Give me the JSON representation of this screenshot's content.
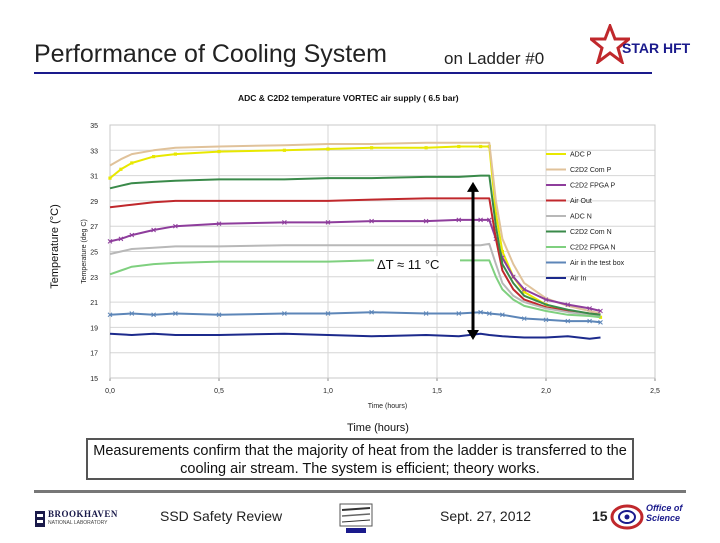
{
  "slide": {
    "title": "Performance of Cooling System",
    "subtitle": "on Ladder #0",
    "logo_text": "STAR HFT",
    "outer_ylabel": "Temperature (°C)",
    "outer_xlabel": "Time (hours)",
    "caption": "Measurements confirm that the majority of heat from the ladder is transferred to the cooling air stream.  The system is efficient; theory works.",
    "footer": {
      "left_logo_name": "BROOKHAVEN",
      "left_logo_sub": "NATIONAL LABORATORY",
      "talk": "SSD Safety Review",
      "date": "Sept. 27, 2012",
      "page": "15",
      "right_logo_text": "Office of Science"
    }
  },
  "chart_data": {
    "type": "line",
    "title": "ADC & C2D2 temperature   VORTEC air supply  ( 6.5 bar)",
    "xlabel": "Time (hours)",
    "ylabel": "Temperature (deg C)",
    "xlim": [
      0,
      2.5
    ],
    "ylim": [
      15,
      35
    ],
    "xticks": [
      "0,0",
      "0,5",
      "1,0",
      "1,5",
      "2,0",
      "2,5"
    ],
    "yticks": [
      "15",
      "17",
      "19",
      "21",
      "23",
      "25",
      "27",
      "29",
      "31",
      "33",
      "35"
    ],
    "grid": true,
    "legend_position": "right",
    "annotation": "ΔT ≈ 11 °C",
    "annotation_arrow": {
      "x": 1.5,
      "y_from": 18.0,
      "y_to": 30.5
    },
    "series": [
      {
        "name": "ADC P",
        "color": "#e8e800",
        "marker": "square",
        "x": [
          0.0,
          0.05,
          0.1,
          0.2,
          0.3,
          0.5,
          0.8,
          1.0,
          1.2,
          1.45,
          1.6,
          1.7,
          1.74,
          1.77,
          1.8,
          1.85,
          1.9,
          2.0,
          2.1,
          2.2,
          2.25
        ],
        "y": [
          30.8,
          31.5,
          32.0,
          32.5,
          32.7,
          32.9,
          33.0,
          33.1,
          33.2,
          33.2,
          33.3,
          33.3,
          33.3,
          28.0,
          25.0,
          23.0,
          21.8,
          20.8,
          20.3,
          20.0,
          19.8
        ]
      },
      {
        "name": "C2D2 Com P",
        "color": "#e0c29a",
        "x": [
          0.0,
          0.05,
          0.1,
          0.2,
          0.3,
          0.5,
          0.8,
          1.0,
          1.2,
          1.45,
          1.6,
          1.7,
          1.74,
          1.77,
          1.8,
          1.85,
          1.9,
          2.0,
          2.1,
          2.2,
          2.25
        ],
        "y": [
          31.8,
          32.3,
          32.7,
          33.0,
          33.2,
          33.3,
          33.4,
          33.5,
          33.5,
          33.6,
          33.6,
          33.6,
          33.6,
          29.0,
          26.0,
          24.0,
          22.5,
          21.3,
          20.7,
          20.3,
          20.1
        ]
      },
      {
        "name": "C2D2 FPGA P",
        "color": "#8e3d9c",
        "marker": "x",
        "x": [
          0.0,
          0.05,
          0.1,
          0.2,
          0.3,
          0.5,
          0.8,
          1.0,
          1.2,
          1.45,
          1.6,
          1.7,
          1.74,
          1.77,
          1.8,
          1.85,
          1.9,
          2.0,
          2.1,
          2.2,
          2.25
        ],
        "y": [
          25.8,
          26.0,
          26.3,
          26.7,
          27.0,
          27.2,
          27.3,
          27.3,
          27.4,
          27.4,
          27.5,
          27.5,
          27.5,
          26.0,
          24.5,
          23.0,
          22.0,
          21.2,
          20.8,
          20.5,
          20.3
        ]
      },
      {
        "name": "Air Out",
        "color": "#c0282c",
        "x": [
          0.0,
          0.05,
          0.1,
          0.2,
          0.3,
          0.5,
          0.8,
          1.0,
          1.2,
          1.45,
          1.6,
          1.7,
          1.74,
          1.77,
          1.8,
          1.85,
          1.9,
          2.0,
          2.1,
          2.2,
          2.25
        ],
        "y": [
          28.5,
          28.6,
          28.7,
          28.9,
          29.0,
          29.0,
          29.0,
          29.0,
          29.1,
          29.2,
          29.2,
          29.2,
          29.2,
          26.0,
          23.5,
          22.0,
          21.2,
          20.6,
          20.3,
          20.1,
          20.0
        ]
      },
      {
        "name": "ADC N",
        "color": "#b8b8b8",
        "x": [
          0.0,
          0.05,
          0.1,
          0.2,
          0.3,
          0.5,
          0.8,
          1.0,
          1.2,
          1.45,
          1.6,
          1.7,
          1.74,
          1.77,
          1.8,
          1.85,
          1.9,
          2.0,
          2.1,
          2.2,
          2.25
        ],
        "y": [
          24.8,
          25.0,
          25.2,
          25.3,
          25.4,
          25.4,
          25.5,
          25.5,
          25.5,
          25.5,
          25.5,
          25.5,
          25.6,
          24.0,
          22.5,
          21.5,
          21.0,
          20.5,
          20.2,
          20.0,
          19.9
        ]
      },
      {
        "name": "C2D2 Com N",
        "color": "#3a8a4a",
        "x": [
          0.0,
          0.05,
          0.1,
          0.2,
          0.3,
          0.5,
          0.8,
          1.0,
          1.2,
          1.45,
          1.6,
          1.7,
          1.74,
          1.77,
          1.8,
          1.85,
          1.9,
          2.0,
          2.1,
          2.2,
          2.25
        ],
        "y": [
          30.0,
          30.2,
          30.4,
          30.5,
          30.6,
          30.7,
          30.7,
          30.8,
          30.8,
          30.9,
          30.9,
          31.0,
          31.0,
          27.0,
          24.0,
          22.5,
          21.5,
          20.8,
          20.4,
          20.1,
          20.0
        ]
      },
      {
        "name": "C2D2 FPGA N",
        "color": "#7fd07f",
        "x": [
          0.0,
          0.05,
          0.1,
          0.2,
          0.3,
          0.5,
          0.8,
          1.0,
          1.2,
          1.45,
          1.6,
          1.7,
          1.74,
          1.77,
          1.8,
          1.85,
          1.9,
          2.0,
          2.1,
          2.2,
          2.25
        ],
        "y": [
          23.2,
          23.5,
          23.8,
          24.0,
          24.1,
          24.2,
          24.2,
          24.2,
          24.3,
          24.3,
          24.3,
          24.3,
          24.3,
          23.0,
          22.0,
          21.2,
          20.7,
          20.3,
          20.0,
          19.9,
          19.8
        ]
      },
      {
        "name": "Air in the test box",
        "color": "#5d86b8",
        "marker": "x",
        "x": [
          0.0,
          0.1,
          0.2,
          0.3,
          0.5,
          0.8,
          1.0,
          1.2,
          1.45,
          1.6,
          1.7,
          1.74,
          1.8,
          1.9,
          2.0,
          2.1,
          2.2,
          2.25
        ],
        "y": [
          20.0,
          20.1,
          20.0,
          20.1,
          20.0,
          20.1,
          20.1,
          20.2,
          20.1,
          20.1,
          20.2,
          20.1,
          20.0,
          19.7,
          19.6,
          19.5,
          19.5,
          19.4
        ]
      },
      {
        "name": "Air In",
        "color": "#1c2a8c",
        "x": [
          0.0,
          0.1,
          0.2,
          0.3,
          0.5,
          0.8,
          1.0,
          1.2,
          1.45,
          1.6,
          1.7,
          1.74,
          1.8,
          1.9,
          2.0,
          2.1,
          2.2,
          2.25
        ],
        "y": [
          18.5,
          18.4,
          18.5,
          18.4,
          18.4,
          18.5,
          18.4,
          18.3,
          18.4,
          18.3,
          18.5,
          18.4,
          18.3,
          18.2,
          18.2,
          18.3,
          18.1,
          18.2
        ]
      }
    ]
  }
}
